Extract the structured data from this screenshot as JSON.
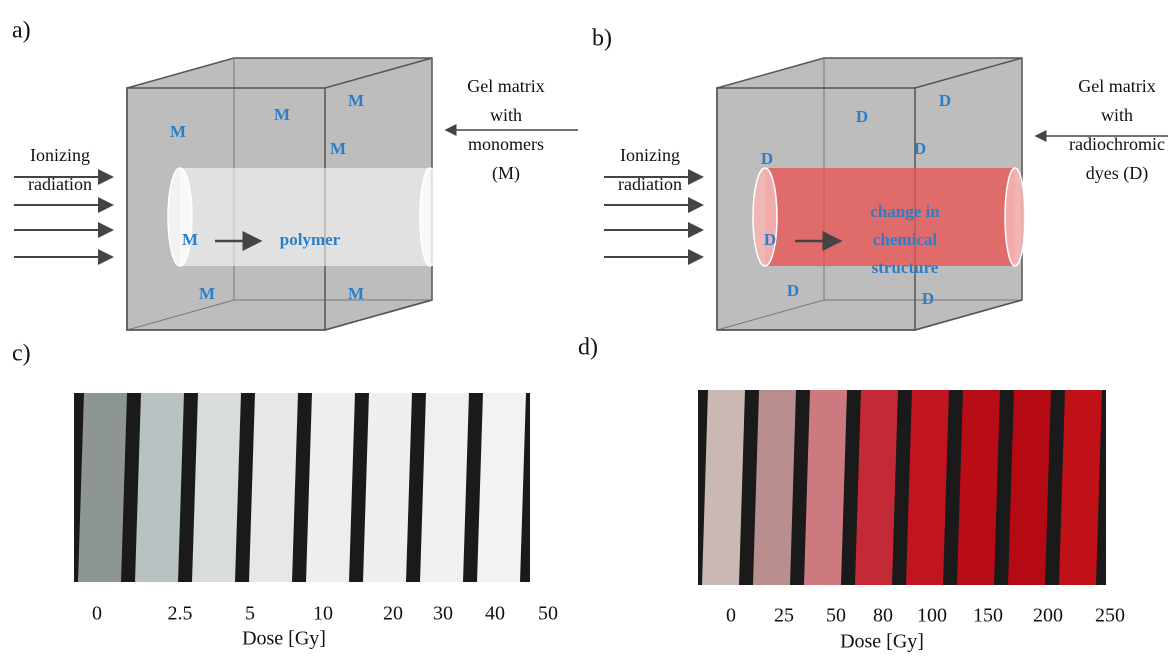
{
  "panel_a": {
    "label": "a)",
    "source_label": [
      "Ionizing",
      "radiation"
    ],
    "matrix_label": [
      "Gel matrix",
      "with",
      "monomers",
      "(M)"
    ],
    "molecule": "M",
    "product": [
      "polymer"
    ]
  },
  "panel_b": {
    "label": "b)",
    "source_label": [
      "Ionizing",
      "radiation"
    ],
    "matrix_label": [
      "Gel matrix",
      "with",
      "radiochromic",
      "dyes (D)"
    ],
    "molecule": "D",
    "product": [
      "change in",
      "chemical",
      "structure"
    ]
  },
  "panel_c": {
    "label": "c)",
    "doses": [
      "0",
      "2.5",
      "5",
      "10",
      "20",
      "30",
      "40",
      "50"
    ],
    "axis_label": "Dose [Gy]"
  },
  "panel_d": {
    "label": "d)",
    "doses": [
      "0",
      "25",
      "50",
      "80",
      "100",
      "150",
      "200",
      "250"
    ],
    "axis_label": "Dose [Gy]"
  }
}
